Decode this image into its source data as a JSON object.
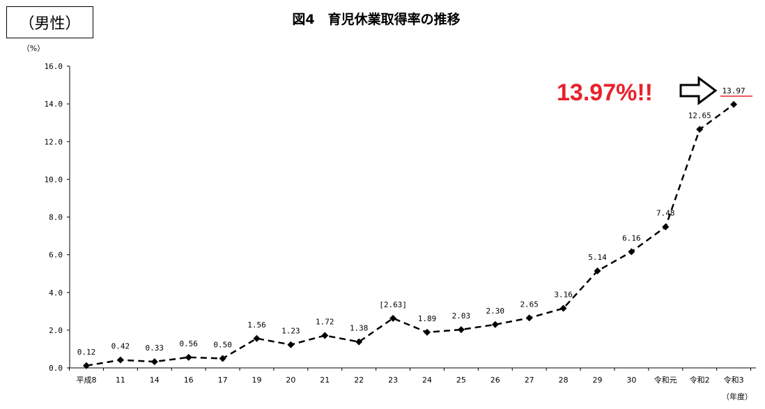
{
  "gender_label": "（男性）",
  "chart_data": {
    "type": "line",
    "title": "図4　育児休業取得率の推移",
    "ylabel": "（%）",
    "xlabel": "（年度）",
    "ylim": [
      0,
      16
    ],
    "yticks": [
      "0.0",
      "2.0",
      "4.0",
      "6.0",
      "8.0",
      "10.0",
      "12.0",
      "14.0",
      "16.0"
    ],
    "categories": [
      "平成8",
      "11",
      "14",
      "16",
      "17",
      "19",
      "20",
      "21",
      "22",
      "23",
      "24",
      "25",
      "26",
      "27",
      "28",
      "29",
      "30",
      "令和元",
      "令和2",
      "令和3"
    ],
    "series": [
      {
        "values": [
          0.12,
          0.42,
          0.33,
          0.56,
          0.5,
          1.56,
          1.23,
          1.72,
          1.38,
          2.63,
          1.89,
          2.03,
          2.3,
          2.65,
          3.16,
          5.14,
          6.16,
          7.48,
          12.65,
          13.97
        ],
        "labels": [
          "0.12",
          "0.42",
          "0.33",
          "0.56",
          "0.50",
          "1.56",
          "1.23",
          "1.72",
          "1.38",
          "[2.63]",
          "1.89",
          "2.03",
          "2.30",
          "2.65",
          "3.16",
          "5.14",
          "6.16",
          "7.48",
          "12.65",
          "13.97"
        ],
        "line_style": "dashed",
        "marker": "diamond",
        "color": "#000000"
      }
    ],
    "annotation": {
      "text": "13.97%!!",
      "color": "#e8212b",
      "arrow": "right-outline-arrow"
    },
    "grid": false
  }
}
